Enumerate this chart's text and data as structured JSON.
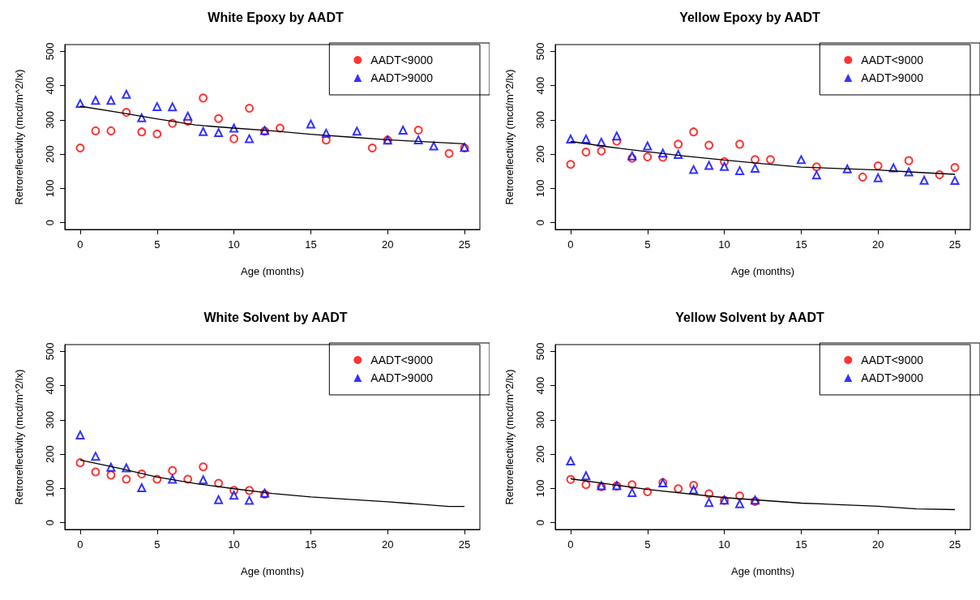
{
  "chart_data": [
    {
      "type": "scatter",
      "title": "White Epoxy by AADT",
      "xlabel": "Age (months)",
      "ylabel": "Retroreflectivity (mcd/m^2/lx)",
      "xlim": [
        -1,
        26
      ],
      "xticks": [
        0,
        5,
        10,
        15,
        20,
        25
      ],
      "ylim": [
        -20,
        520
      ],
      "yticks": [
        0,
        100,
        200,
        300,
        400,
        500
      ],
      "grid": false,
      "legend": "top right",
      "series": [
        {
          "name": "AADT<9000",
          "color": "#ff0000",
          "marker": "circle",
          "x": [
            0,
            1,
            2,
            3,
            4,
            5,
            6,
            7,
            8,
            9,
            10,
            11,
            12,
            13,
            16,
            19,
            20,
            22,
            24,
            25
          ],
          "values": [
            218,
            268,
            268,
            322,
            265,
            259,
            290,
            296,
            364,
            304,
            245,
            334,
            267,
            276,
            241,
            218,
            241,
            270,
            202,
            218
          ]
        },
        {
          "name": "AADT>9000",
          "color": "#0000ff",
          "marker": "triangle",
          "x": [
            0,
            1,
            2,
            3,
            4,
            5,
            6,
            7,
            8,
            9,
            10,
            11,
            12,
            15,
            16,
            18,
            20,
            21,
            22,
            23,
            25
          ],
          "values": [
            348,
            357,
            357,
            375,
            306,
            339,
            338,
            311,
            266,
            263,
            276,
            245,
            269,
            288,
            261,
            267,
            241,
            270,
            242,
            224,
            220
          ]
        },
        {
          "type": "line",
          "color": "#000000",
          "marker": "none",
          "x": [
            0,
            2.5,
            5,
            7.5,
            10,
            12.5,
            15,
            17.5,
            20,
            22.5,
            25
          ],
          "values": [
            340,
            322,
            303,
            285,
            276,
            268,
            258,
            250,
            242,
            236,
            230
          ]
        }
      ]
    },
    {
      "type": "scatter",
      "title": "Yellow Epoxy by AADT",
      "xlabel": "Age (months)",
      "ylabel": "Retroreflectivity (mcd/m^2/lx)",
      "xlim": [
        -1,
        26
      ],
      "xticks": [
        0,
        5,
        10,
        15,
        20,
        25
      ],
      "ylim": [
        -20,
        520
      ],
      "yticks": [
        0,
        100,
        200,
        300,
        400,
        500
      ],
      "grid": false,
      "legend": "top right",
      "series": [
        {
          "name": "AADT<9000",
          "color": "#ff0000",
          "marker": "circle",
          "x": [
            0,
            1,
            2,
            3,
            4,
            5,
            6,
            7,
            8,
            9,
            10,
            11,
            12,
            13,
            16,
            19,
            20,
            22,
            24,
            25
          ],
          "values": [
            170,
            206,
            209,
            238,
            188,
            192,
            191,
            229,
            265,
            226,
            178,
            229,
            184,
            184,
            163,
            133,
            166,
            181,
            140,
            161
          ]
        },
        {
          "name": "AADT>9000",
          "color": "#0000ff",
          "marker": "triangle",
          "x": [
            0,
            1,
            2,
            3,
            4,
            5,
            6,
            7,
            8,
            9,
            10,
            11,
            12,
            15,
            16,
            18,
            20,
            21,
            22,
            23,
            25
          ],
          "values": [
            244,
            244,
            235,
            253,
            195,
            224,
            203,
            199,
            155,
            167,
            164,
            152,
            159,
            184,
            139,
            157,
            131,
            160,
            148,
            124,
            123
          ]
        },
        {
          "type": "line",
          "color": "#000000",
          "marker": "none",
          "x": [
            0,
            2.5,
            5,
            7.5,
            10,
            12.5,
            15,
            17.5,
            20,
            22.5,
            25
          ],
          "values": [
            237,
            221,
            207,
            194,
            183,
            172,
            162,
            158,
            154,
            147,
            141
          ]
        }
      ]
    },
    {
      "type": "scatter",
      "title": "White Solvent by AADT",
      "xlabel": "Age (months)",
      "ylabel": "Retroreflectivity (mcd/m^2/lx)",
      "xlim": [
        -1,
        26
      ],
      "xticks": [
        0,
        5,
        10,
        15,
        20,
        25
      ],
      "ylim": [
        -20,
        520
      ],
      "yticks": [
        0,
        100,
        200,
        300,
        400,
        500
      ],
      "grid": false,
      "legend": "top right",
      "series": [
        {
          "name": "AADT<9000",
          "color": "#ff0000",
          "marker": "circle",
          "x": [
            0,
            1,
            2,
            3,
            4,
            5,
            6,
            7,
            8,
            9,
            10,
            11,
            12
          ],
          "values": [
            175,
            148,
            139,
            127,
            142,
            127,
            152,
            127,
            163,
            115,
            94,
            94,
            83
          ]
        },
        {
          "name": "AADT>9000",
          "color": "#0000ff",
          "marker": "triangle",
          "x": [
            0,
            1,
            2,
            3,
            4,
            6,
            8,
            9,
            10,
            11,
            12
          ],
          "values": [
            256,
            194,
            162,
            160,
            102,
            127,
            125,
            67,
            80,
            65,
            86
          ]
        },
        {
          "type": "line",
          "color": "#000000",
          "marker": "none",
          "x": [
            0,
            2.5,
            5,
            7.5,
            10,
            12.5,
            15,
            20,
            24,
            25
          ],
          "values": [
            183,
            159,
            133,
            114,
            99,
            85,
            75,
            61,
            47,
            47
          ]
        }
      ]
    },
    {
      "type": "scatter",
      "title": "Yellow Solvent by AADT",
      "xlabel": "Age (months)",
      "ylabel": "Retroreflectivity (mcd/m^2/lx)",
      "xlim": [
        -1,
        26
      ],
      "xticks": [
        0,
        5,
        10,
        15,
        20,
        25
      ],
      "ylim": [
        -20,
        520
      ],
      "yticks": [
        0,
        100,
        200,
        300,
        400,
        500
      ],
      "grid": false,
      "legend": "top right",
      "series": [
        {
          "name": "AADT<9000",
          "color": "#ff0000",
          "marker": "circle",
          "x": [
            0,
            1,
            2,
            3,
            4,
            5,
            6,
            7,
            8,
            9,
            10,
            11,
            12
          ],
          "values": [
            126,
            111,
            105,
            107,
            111,
            90,
            117,
            99,
            109,
            84,
            65,
            78,
            62
          ]
        },
        {
          "name": "AADT>9000",
          "color": "#0000ff",
          "marker": "triangle",
          "x": [
            0,
            1,
            2,
            3,
            4,
            6,
            8,
            9,
            10,
            11,
            12
          ],
          "values": [
            180,
            137,
            108,
            108,
            88,
            116,
            96,
            59,
            66,
            55,
            66
          ]
        },
        {
          "type": "line",
          "color": "#000000",
          "marker": "none",
          "x": [
            0,
            5,
            10,
            15,
            20,
            22.5,
            25
          ],
          "values": [
            128,
            97,
            73,
            57,
            48,
            40,
            38
          ]
        }
      ]
    }
  ]
}
